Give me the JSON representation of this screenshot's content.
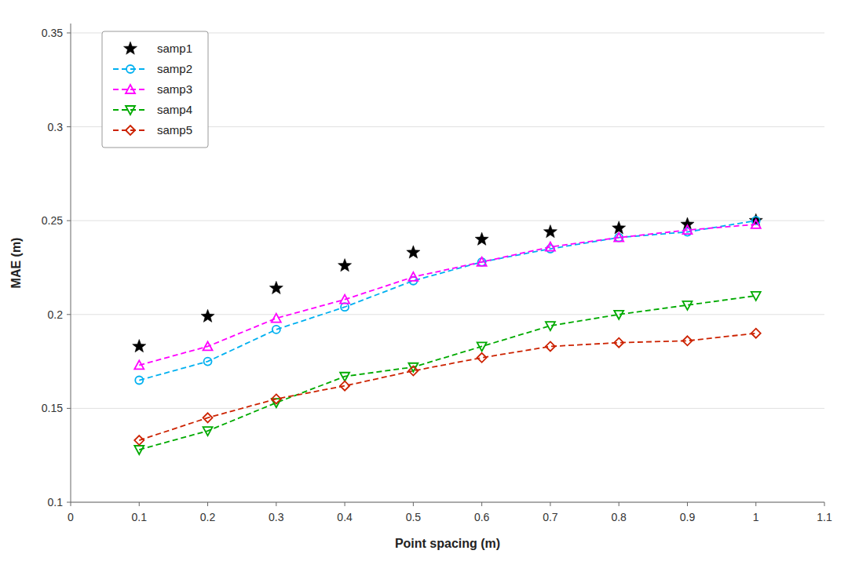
{
  "chart_data": {
    "type": "line",
    "xlabel": "Point spacing (m)",
    "ylabel": "MAE (m)",
    "x": [
      0.1,
      0.2,
      0.3,
      0.4,
      0.5,
      0.6,
      0.7,
      0.8,
      0.9,
      1.0
    ],
    "series": [
      {
        "name": "samp1",
        "color": "#000000",
        "marker": "star",
        "line_style": "none",
        "values": [
          0.183,
          0.199,
          0.214,
          0.226,
          0.233,
          0.24,
          0.244,
          0.246,
          0.248,
          0.25
        ]
      },
      {
        "name": "samp2",
        "color": "#00B0F0",
        "marker": "circle",
        "line_style": "dashed",
        "values": [
          0.165,
          0.175,
          0.192,
          0.204,
          0.218,
          0.228,
          0.235,
          0.241,
          0.244,
          0.25
        ]
      },
      {
        "name": "samp3",
        "color": "#FF00FF",
        "marker": "triangle-up",
        "line_style": "dashed",
        "values": [
          0.173,
          0.183,
          0.198,
          0.208,
          0.22,
          0.228,
          0.236,
          0.241,
          0.245,
          0.248
        ]
      },
      {
        "name": "samp4",
        "color": "#00AA00",
        "marker": "triangle-down",
        "line_style": "dashed",
        "values": [
          0.128,
          0.138,
          0.153,
          0.167,
          0.172,
          0.183,
          0.194,
          0.2,
          0.205,
          0.21
        ]
      },
      {
        "name": "samp5",
        "color": "#CC2200",
        "marker": "diamond",
        "line_style": "dashed",
        "values": [
          0.133,
          0.145,
          0.155,
          0.162,
          0.17,
          0.177,
          0.183,
          0.185,
          0.186,
          0.19
        ]
      }
    ],
    "xlim": [
      0,
      1.1
    ],
    "ylim": [
      0.1,
      0.355
    ],
    "xticks": [
      0,
      0.1,
      0.2,
      0.3,
      0.4,
      0.5,
      0.6,
      0.7,
      0.8,
      0.9,
      1,
      1.1
    ],
    "yticks": [
      0.1,
      0.15,
      0.2,
      0.25,
      0.3,
      0.35
    ],
    "grid": "y",
    "legend": "upper left"
  }
}
